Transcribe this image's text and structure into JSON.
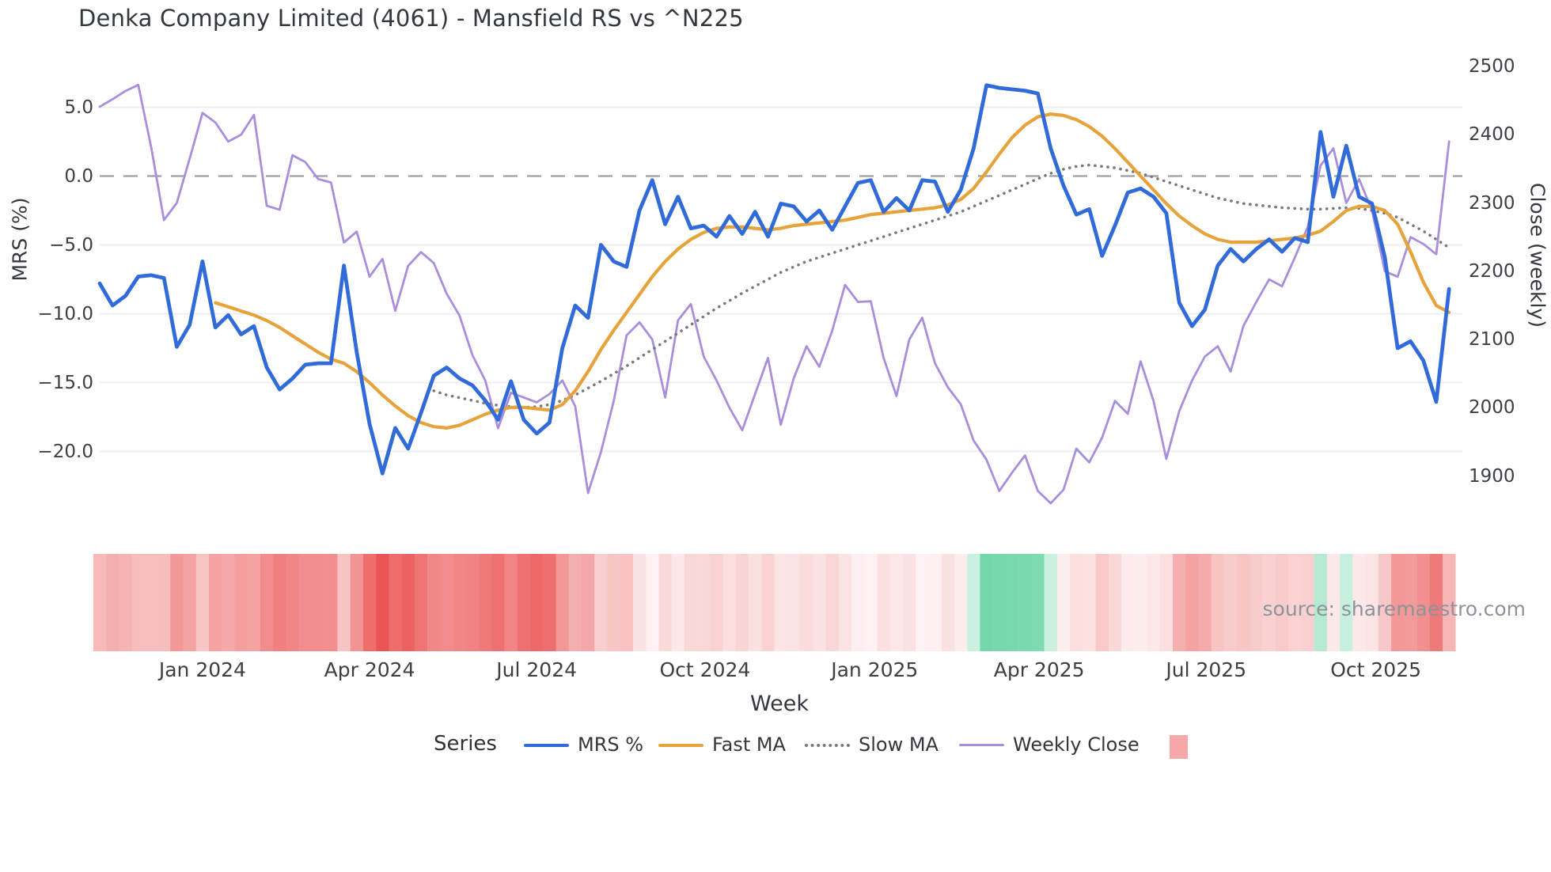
{
  "title": "Denka Company Limited (4061) - Mansfield RS vs ^N225",
  "source_text": "source: sharemaestro.com",
  "legend": {
    "title": "Series",
    "heat_swatch_color": "#f5a8a8",
    "item_offsets": [
      662,
      832,
      1017,
      1212
    ]
  },
  "colors": {
    "mrs_blue": "#316bd9",
    "fast_ma_orange": "#e7a33b",
    "slow_ma_gray": "#77797e",
    "weekly_close_purple": "#a98edb",
    "gridline": "#eaedf3",
    "zero_dash": "#999fa8",
    "heat_negative": "#eb5454",
    "heat_positive": "#6fd6a8"
  },
  "chart_data": {
    "type": "line",
    "title": "Denka Company Limited (4061) - Mansfield RS vs ^N225",
    "xlabel": "Week",
    "left_axis": {
      "label": "MRS (%)",
      "tick_values": [
        5,
        0,
        -5,
        -10,
        -15,
        -20
      ],
      "tick_labels": [
        "5.0",
        "0.0",
        "−5.0",
        "−10.0",
        "−15.0",
        "−20.0"
      ],
      "zero_line_dashed": true
    },
    "right_axis": {
      "label": "Close (weekly)",
      "tick_values": [
        2500,
        2400,
        2300,
        2200,
        2100,
        2000,
        1900
      ],
      "tick_labels": [
        "2500",
        "2400",
        "2300",
        "2200",
        "2100",
        "2000",
        "1900"
      ]
    },
    "x_axis": {
      "tick_labels": [
        "Jan 2024",
        "Apr 2024",
        "Jul 2024",
        "Oct 2024",
        "Jan 2025",
        "Apr 2025",
        "Jul 2025",
        "Oct 2025"
      ],
      "tick_weeks": [
        8,
        21,
        34,
        47.1,
        60.3,
        73.1,
        86.1,
        99.3
      ],
      "weeks_total": 106
    },
    "grid": true,
    "legend_position": "bottom",
    "series": [
      {
        "name": "MRS %",
        "axis": "left",
        "style": "solid",
        "color": "#316bd9",
        "width": 4.8,
        "values": [
          -7.8,
          -9.4,
          -8.7,
          -7.3,
          -7.2,
          -7.4,
          -12.4,
          -10.8,
          -6.2,
          -11,
          -10.1,
          -11.5,
          -10.9,
          -13.9,
          -15.5,
          -14.7,
          -13.7,
          -13.6,
          -13.6,
          -6.5,
          -12.8,
          -18,
          -21.6,
          -18.3,
          -19.8,
          -17.2,
          -14.5,
          -13.9,
          -14.7,
          -15.2,
          -16.3,
          -17.7,
          -14.9,
          -17.7,
          -18.7,
          -17.9,
          -12.5,
          -9.4,
          -10.3,
          -5,
          -6.2,
          -6.6,
          -2.5,
          -0.3,
          -3.5,
          -1.5,
          -3.8,
          -3.6,
          -4.4,
          -2.9,
          -4.2,
          -2.6,
          -4.4,
          -2,
          -2.2,
          -3.3,
          -2.5,
          -3.9,
          -2.2,
          -0.5,
          -0.3,
          -2.6,
          -1.6,
          -2.5,
          -0.3,
          -0.4,
          -2.6,
          -1,
          2,
          6.6,
          6.4,
          6.3,
          6.2,
          6,
          2,
          -0.7,
          -2.8,
          -2.4,
          -5.8,
          -3.6,
          -1.2,
          -0.9,
          -1.5,
          -2.7,
          -9.2,
          -10.9,
          -9.7,
          -6.5,
          -5.3,
          -6.2,
          -5.3,
          -4.6,
          -5.5,
          -4.5,
          -4.8,
          3.2,
          -1.5,
          2.2,
          -1.5,
          -2,
          -5.9,
          -12.5,
          -12,
          -13.4,
          -16.4,
          -8.2
        ]
      },
      {
        "name": "Fast MA",
        "axis": "left",
        "style": "solid",
        "color": "#e7a33b",
        "width": 4.2,
        "values": [
          null,
          null,
          null,
          null,
          null,
          null,
          null,
          null,
          null,
          -9.2,
          -9.5,
          -9.8,
          -10.1,
          -10.5,
          -11,
          -11.6,
          -12.2,
          -12.8,
          -13.3,
          -13.6,
          -14.2,
          -15,
          -15.9,
          -16.7,
          -17.4,
          -17.9,
          -18.2,
          -18.3,
          -18.1,
          -17.7,
          -17.3,
          -17,
          -16.8,
          -16.8,
          -16.9,
          -17,
          -16.6,
          -15.6,
          -14.2,
          -12.6,
          -11.2,
          -9.9,
          -8.6,
          -7.3,
          -6.2,
          -5.3,
          -4.6,
          -4.1,
          -3.8,
          -3.7,
          -3.7,
          -3.8,
          -3.9,
          -3.8,
          -3.6,
          -3.5,
          -3.4,
          -3.3,
          -3.2,
          -3,
          -2.8,
          -2.7,
          -2.6,
          -2.5,
          -2.4,
          -2.3,
          -2.1,
          -1.7,
          -0.9,
          0.3,
          1.6,
          2.8,
          3.7,
          4.3,
          4.5,
          4.4,
          4.1,
          3.6,
          2.9,
          2,
          1,
          0,
          -1,
          -2,
          -2.9,
          -3.6,
          -4.2,
          -4.6,
          -4.8,
          -4.8,
          -4.8,
          -4.7,
          -4.6,
          -4.5,
          -4.3,
          -4,
          -3.3,
          -2.5,
          -2.2,
          -2.2,
          -2.5,
          -3.5,
          -5.5,
          -7.7,
          -9.4,
          -9.9
        ]
      },
      {
        "name": "Slow MA",
        "axis": "left",
        "style": "dotted",
        "color": "#77797e",
        "width": 3.6,
        "values": [
          null,
          null,
          null,
          null,
          null,
          null,
          null,
          null,
          null,
          null,
          null,
          null,
          null,
          null,
          null,
          null,
          null,
          null,
          null,
          null,
          null,
          null,
          null,
          null,
          null,
          null,
          -15.6,
          -15.9,
          -16.1,
          -16.3,
          -16.5,
          -16.65,
          -16.75,
          -16.8,
          -16.75,
          -16.6,
          -16.3,
          -15.9,
          -15.4,
          -14.9,
          -14.35,
          -13.8,
          -13.2,
          -12.6,
          -12,
          -11.4,
          -10.8,
          -10.2,
          -9.6,
          -9.05,
          -8.5,
          -8,
          -7.5,
          -7,
          -6.6,
          -6.2,
          -5.9,
          -5.6,
          -5.3,
          -5,
          -4.7,
          -4.4,
          -4.1,
          -3.8,
          -3.5,
          -3.2,
          -2.9,
          -2.6,
          -2.2,
          -1.8,
          -1.4,
          -1,
          -0.6,
          -0.2,
          0.2,
          0.5,
          0.7,
          0.8,
          0.7,
          0.6,
          0.4,
          0.2,
          -0.1,
          -0.4,
          -0.7,
          -1,
          -1.3,
          -1.6,
          -1.8,
          -2,
          -2.1,
          -2.2,
          -2.3,
          -2.35,
          -2.4,
          -2.4,
          -2.35,
          -2.3,
          -2.35,
          -2.5,
          -2.7,
          -3,
          -3.5,
          -4,
          -4.6,
          -5.2
        ]
      },
      {
        "name": "Weekly Close",
        "axis": "right",
        "style": "solid",
        "color": "#a98edb",
        "width": 2.8,
        "values": [
          2441,
          2452,
          2464,
          2473,
          2382,
          2275,
          2300,
          2365,
          2432,
          2418,
          2390,
          2400,
          2429,
          2296,
          2290,
          2370,
          2360,
          2335,
          2330,
          2242,
          2258,
          2192,
          2218,
          2142,
          2208,
          2228,
          2212,
          2167,
          2135,
          2077,
          2040,
          1970,
          2022,
          2015,
          2008,
          2020,
          2040,
          2002,
          1875,
          1935,
          2010,
          2106,
          2125,
          2100,
          2015,
          2128,
          2152,
          2075,
          2040,
          2000,
          1967,
          2020,
          2073,
          1975,
          2043,
          2090,
          2060,
          2113,
          2180,
          2155,
          2156,
          2073,
          2017,
          2100,
          2132,
          2065,
          2030,
          2005,
          1952,
          1924,
          1878,
          1905,
          1930,
          1878,
          1860,
          1880,
          1940,
          1920,
          1956,
          2010,
          1991,
          2068,
          2010,
          1925,
          1995,
          2040,
          2075,
          2090,
          2053,
          2120,
          2155,
          2188,
          2178,
          2220,
          2265,
          2355,
          2380,
          2300,
          2335,
          2289,
          2200,
          2192,
          2250,
          2240,
          2225,
          2390
        ]
      }
    ],
    "heatmap_strip": {
      "derived_from": "MRS %",
      "negative_color": "#eb5454",
      "positive_color": "#6fd6a8",
      "negative_full_scale": 21.5,
      "positive_full_scale": 6.8
    }
  }
}
